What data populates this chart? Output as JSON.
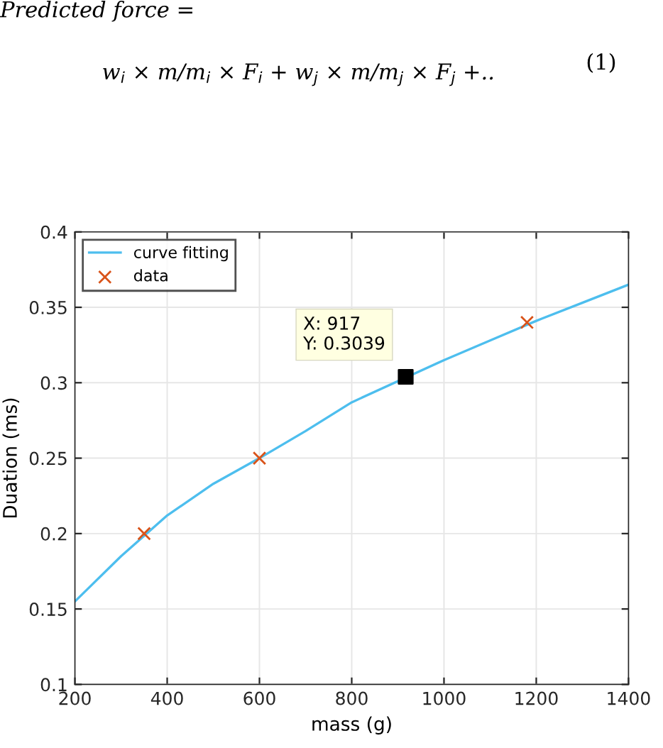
{
  "chart_data": {
    "type": "line",
    "xlabel": "mass (g)",
    "ylabel": "Duation (ms)",
    "xlim": [
      200,
      1400
    ],
    "xticks": [
      200,
      400,
      600,
      800,
      1000,
      1200,
      1400
    ],
    "ylim": [
      0.1,
      0.4
    ],
    "yticks": [
      0.1,
      0.15,
      0.2,
      0.25,
      0.3,
      0.35,
      0.4
    ],
    "grid": true,
    "legend": "top left",
    "series": [
      {
        "name": "curve fitting",
        "color": "#4dbeee",
        "marker": "none",
        "line_style": "solid",
        "x": [
          200,
          300,
          400,
          500,
          600,
          700,
          800,
          1000,
          1100,
          1200,
          1300,
          1400
        ],
        "values": [
          0.155,
          0.185,
          0.212,
          0.233,
          0.25,
          0.268,
          0.287,
          0.315,
          0.328,
          0.341,
          0.353,
          0.365
        ]
      },
      {
        "name": "data",
        "type": "scatter",
        "color": "#d95319",
        "marker": "cross",
        "x": [
          350,
          600,
          1180
        ],
        "values": [
          0.2,
          0.25,
          0.34
        ]
      },
      {
        "type": "scatter",
        "color": "#000000",
        "marker": "square",
        "x": [
          917
        ],
        "values": [
          0.3039
        ]
      }
    ],
    "annotations": [
      "Predicted force =",
      "w$_{i}$ × m/m$_{i}$ × F$_{i}$ + w$_{j}$ × m/m$_{j}$ × F$_{j}$ +..",
      "(1)",
      {
        "text": "X: 917\nY: 0.3039",
        "x": 917,
        "y": 0.3039
      }
    ]
  }
}
